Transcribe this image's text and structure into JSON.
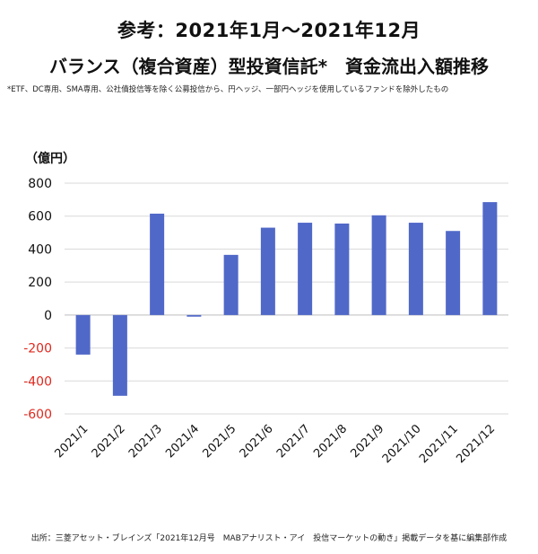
{
  "header": {
    "title_line1": "参考：2021年1月～2021年12月",
    "title_line2": "バランス（複合資産）型投資信託*　資金流出入額推移",
    "footnote": "*ETF、DC専用、SMA専用、公社債投信等を除く公募投信から、円ヘッジ、一部円ヘッジを使用しているファンドを除外したもの"
  },
  "source_text": "出所：三菱アセット・ブレインズ「2021年12月号　MABアナリスト・アイ　投信マーケットの動き」掲載データを基に編集部作成",
  "colors": {
    "bar": "#5068c8",
    "negative_tick": "#e0281e",
    "grid": "#d9d9d9"
  },
  "chart_data": {
    "type": "bar",
    "title": "",
    "xlabel": "",
    "ylabel": "（億円）",
    "categories": [
      "2021/1",
      "2021/2",
      "2021/3",
      "2021/4",
      "2021/5",
      "2021/6",
      "2021/7",
      "2021/8",
      "2021/9",
      "2021/10",
      "2021/11",
      "2021/12"
    ],
    "values": [
      -240,
      -490,
      615,
      -10,
      365,
      530,
      560,
      555,
      605,
      560,
      510,
      685
    ],
    "ylim": [
      -600,
      800
    ],
    "yticks": [
      800,
      600,
      400,
      200,
      0,
      -200,
      -400,
      -600
    ],
    "grid": true,
    "legend": "none"
  }
}
